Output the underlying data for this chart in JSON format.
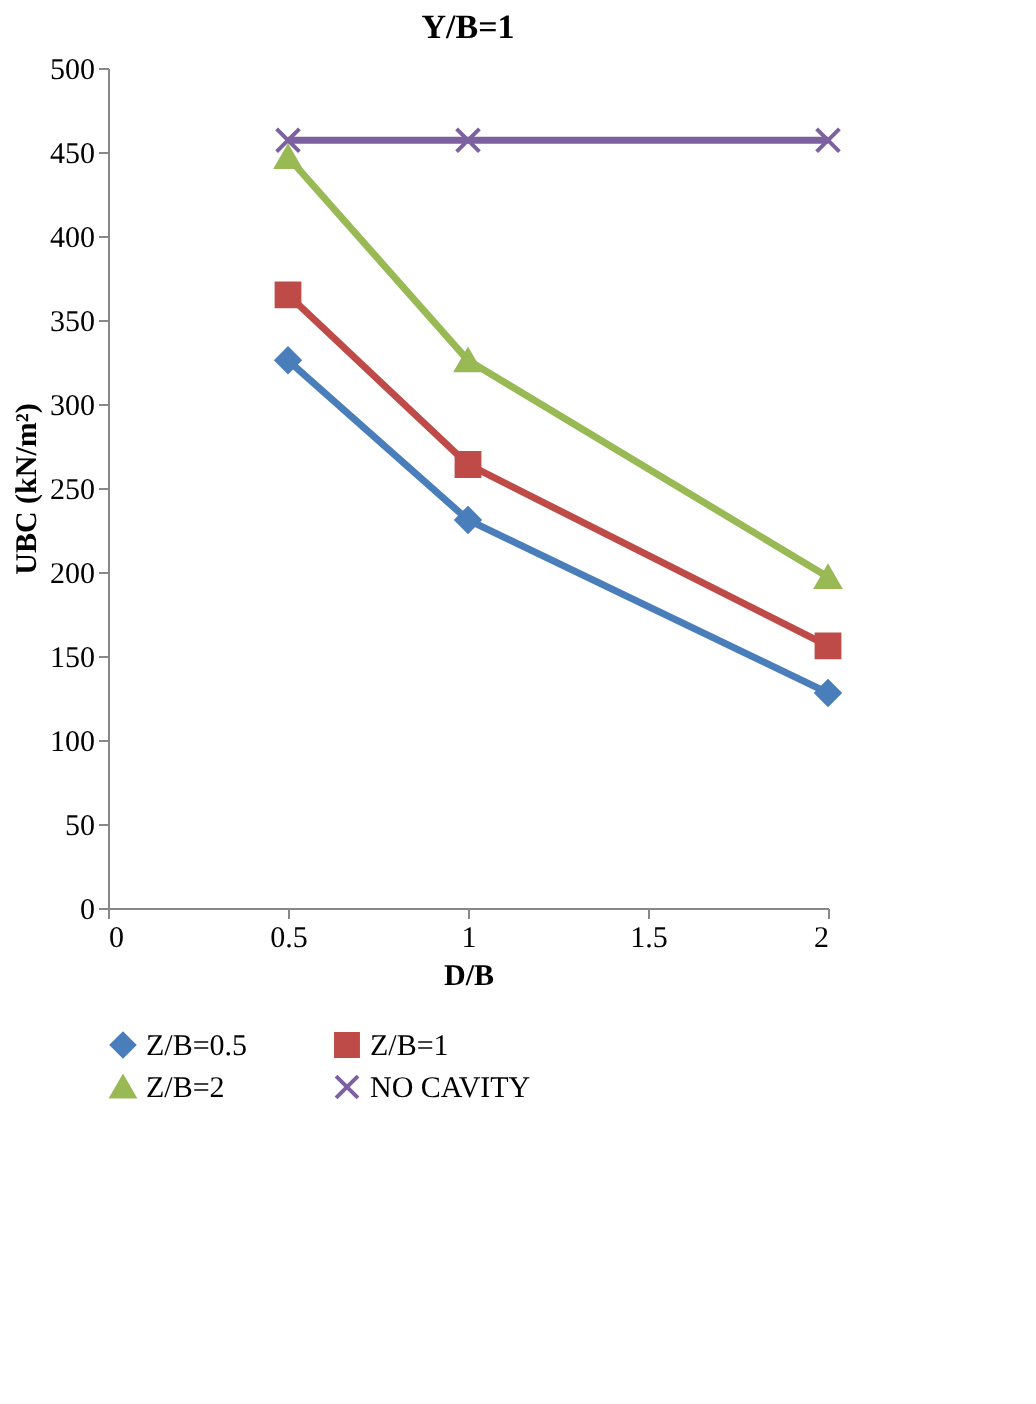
{
  "chart_data": {
    "type": "line",
    "title": "Y/B=1",
    "xlabel": "D/B",
    "ylabel": "UBC (kN/m²)",
    "x": [
      0.5,
      1,
      2
    ],
    "series": [
      {
        "name": "Z/B=0.5",
        "color": "#4a7ebb",
        "marker": "diamond",
        "values": [
          326,
          231,
          128
        ]
      },
      {
        "name": "Z/B=1",
        "color": "#be4b48",
        "marker": "square",
        "values": [
          365,
          264,
          156
        ]
      },
      {
        "name": "Z/B=2",
        "color": "#98b954",
        "marker": "triangle",
        "values": [
          447,
          326,
          197
        ]
      },
      {
        "name": "NO CAVITY",
        "color": "#7d60a0",
        "marker": "cross",
        "values": [
          457,
          457,
          457
        ]
      }
    ],
    "xlim": [
      0,
      2
    ],
    "xticks": [
      0,
      0.5,
      1,
      1.5,
      2
    ],
    "ylim": [
      0,
      500
    ],
    "yticks": [
      0,
      50,
      100,
      150,
      200,
      250,
      300,
      350,
      400,
      450,
      500
    ],
    "grid": false,
    "legend": "bottom",
    "line_style": "solid"
  }
}
